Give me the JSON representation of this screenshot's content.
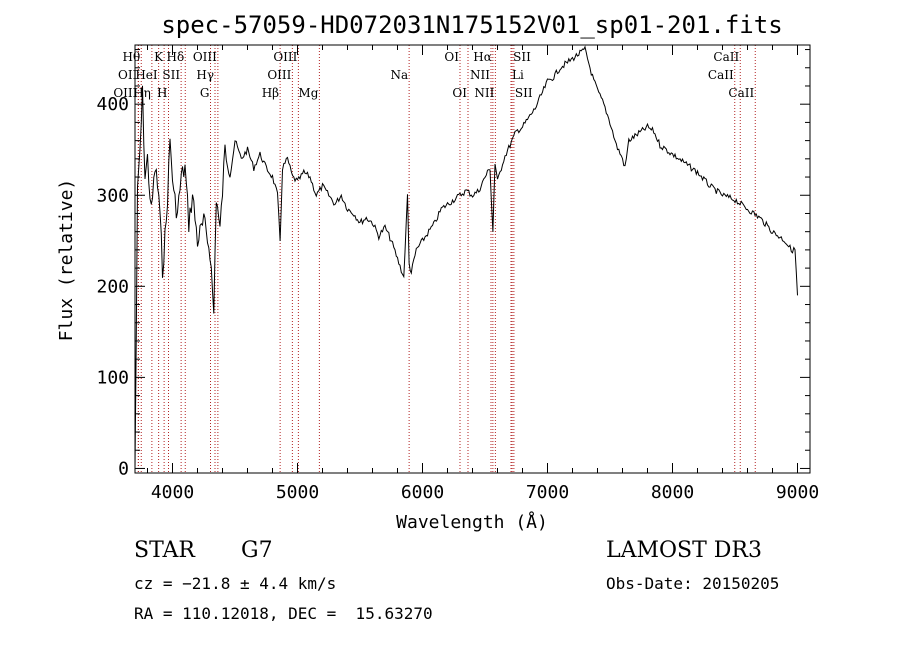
{
  "chart_data": {
    "type": "line",
    "title": "spec-57059-HD072031N175152V01_sp01-201.fits",
    "xlabel": "Wavelength (Å)",
    "ylabel": "Flux (relative)",
    "xlim": [
      3700,
      9100
    ],
    "ylim": [
      -5,
      465
    ],
    "xticks": [
      4000,
      5000,
      6000,
      7000,
      8000,
      9000
    ],
    "yticks": [
      0,
      100,
      200,
      300,
      400
    ],
    "x": [
      3700,
      3720,
      3740,
      3760,
      3780,
      3800,
      3830,
      3860,
      3890,
      3920,
      3950,
      3980,
      4010,
      4040,
      4070,
      4100,
      4130,
      4160,
      4200,
      4250,
      4300,
      4330,
      4350,
      4380,
      4420,
      4460,
      4500,
      4550,
      4600,
      4650,
      4700,
      4750,
      4800,
      4840,
      4861,
      4880,
      4920,
      4960,
      5000,
      5050,
      5100,
      5150,
      5200,
      5250,
      5300,
      5350,
      5400,
      5450,
      5500,
      5550,
      5600,
      5650,
      5700,
      5750,
      5800,
      5850,
      5880,
      5893,
      5910,
      5950,
      6000,
      6050,
      6100,
      6150,
      6200,
      6250,
      6300,
      6350,
      6400,
      6450,
      6500,
      6540,
      6563,
      6580,
      6600,
      6650,
      6700,
      6750,
      6800,
      6850,
      6900,
      6950,
      7000,
      7050,
      7100,
      7150,
      7200,
      7250,
      7300,
      7330,
      7360,
      7400,
      7450,
      7500,
      7550,
      7600,
      7620,
      7650,
      7700,
      7750,
      7800,
      7850,
      7900,
      7950,
      8000,
      8100,
      8200,
      8300,
      8400,
      8500,
      8600,
      8700,
      8800,
      8850,
      8900,
      8950,
      8980,
      9000
    ],
    "values": [
      0,
      300,
      350,
      410,
      320,
      340,
      280,
      330,
      300,
      220,
      270,
      360,
      300,
      280,
      320,
      330,
      270,
      300,
      250,
      270,
      240,
      170,
      300,
      260,
      350,
      330,
      360,
      340,
      350,
      330,
      345,
      330,
      320,
      300,
      250,
      330,
      340,
      320,
      315,
      325,
      320,
      300,
      310,
      300,
      290,
      300,
      285,
      280,
      270,
      275,
      270,
      255,
      265,
      250,
      230,
      210,
      300,
      225,
      215,
      240,
      250,
      260,
      270,
      285,
      290,
      295,
      300,
      305,
      300,
      305,
      320,
      330,
      260,
      335,
      315,
      340,
      355,
      370,
      375,
      385,
      395,
      410,
      425,
      430,
      440,
      445,
      450,
      455,
      460,
      445,
      430,
      415,
      400,
      380,
      355,
      340,
      330,
      360,
      365,
      370,
      375,
      370,
      355,
      350,
      345,
      335,
      325,
      310,
      300,
      295,
      285,
      275,
      260,
      255,
      250,
      240,
      240,
      190
    ],
    "spectral_lines": [
      {
        "label": "OII",
        "x": 3727,
        "row": 1,
        "side": "left"
      },
      {
        "label": "OIII",
        "x": 3727,
        "row": 2,
        "side": "left"
      },
      {
        "label": "Hθ",
        "x": 3750,
        "row": 0,
        "side": "left"
      },
      {
        "label": "Hη",
        "x": 3835,
        "row": 2,
        "side": "left"
      },
      {
        "label": "HeI",
        "x": 3889,
        "row": 1,
        "side": "left"
      },
      {
        "label": "K",
        "x": 3933,
        "row": 0,
        "side": "left"
      },
      {
        "label": "H",
        "x": 3968,
        "row": 2,
        "side": "left"
      },
      {
        "label": "SII",
        "x": 4069,
        "row": 1,
        "side": "left"
      },
      {
        "label": "Hδ",
        "x": 4102,
        "row": 0,
        "side": "left"
      },
      {
        "label": "G",
        "x": 4304,
        "row": 2,
        "side": "left"
      },
      {
        "label": "Hγ",
        "x": 4340,
        "row": 1,
        "side": "left"
      },
      {
        "label": "OIII",
        "x": 4363,
        "row": 0,
        "side": "left"
      },
      {
        "label": "Hβ",
        "x": 4861,
        "row": 2,
        "side": "left"
      },
      {
        "label": "OIII",
        "x": 4959,
        "row": 1,
        "side": "left"
      },
      {
        "label": "OIII",
        "x": 5007,
        "row": 0,
        "side": "left"
      },
      {
        "label": "Mg",
        "x": 5175,
        "row": 2,
        "side": "left"
      },
      {
        "label": "Na",
        "x": 5893,
        "row": 1,
        "side": "left"
      },
      {
        "label": "OI",
        "x": 6300,
        "row": 0,
        "side": "left"
      },
      {
        "label": "OI",
        "x": 6364,
        "row": 2,
        "side": "left"
      },
      {
        "label": "NII",
        "x": 6548,
        "row": 1,
        "side": "left"
      },
      {
        "label": "NII",
        "x": 6583,
        "row": 2,
        "side": "left"
      },
      {
        "label": "Hα",
        "x": 6563,
        "row": 0,
        "side": "left"
      },
      {
        "label": "SII",
        "x": 6717,
        "row": 0,
        "side": "right"
      },
      {
        "label": "Li",
        "x": 6708,
        "row": 1,
        "side": "right"
      },
      {
        "label": "SII",
        "x": 6731,
        "row": 2,
        "side": "right"
      },
      {
        "label": "CaII",
        "x": 8498,
        "row": 1,
        "side": "left"
      },
      {
        "label": "CaII",
        "x": 8542,
        "row": 0,
        "side": "left"
      },
      {
        "label": "CaII",
        "x": 8662,
        "row": 2,
        "side": "left"
      }
    ]
  },
  "info": {
    "object_class": "STAR",
    "subclass": "G7",
    "survey": "LAMOST DR3",
    "redshift": "cz = −21.8 ± 4.4 km/s",
    "obs_date": "Obs-Date: 20150205",
    "coords": "RA = 110.12018, DEC =  15.63270"
  },
  "colors": {
    "line_marker": "#b22222",
    "spectrum": "#000000"
  }
}
